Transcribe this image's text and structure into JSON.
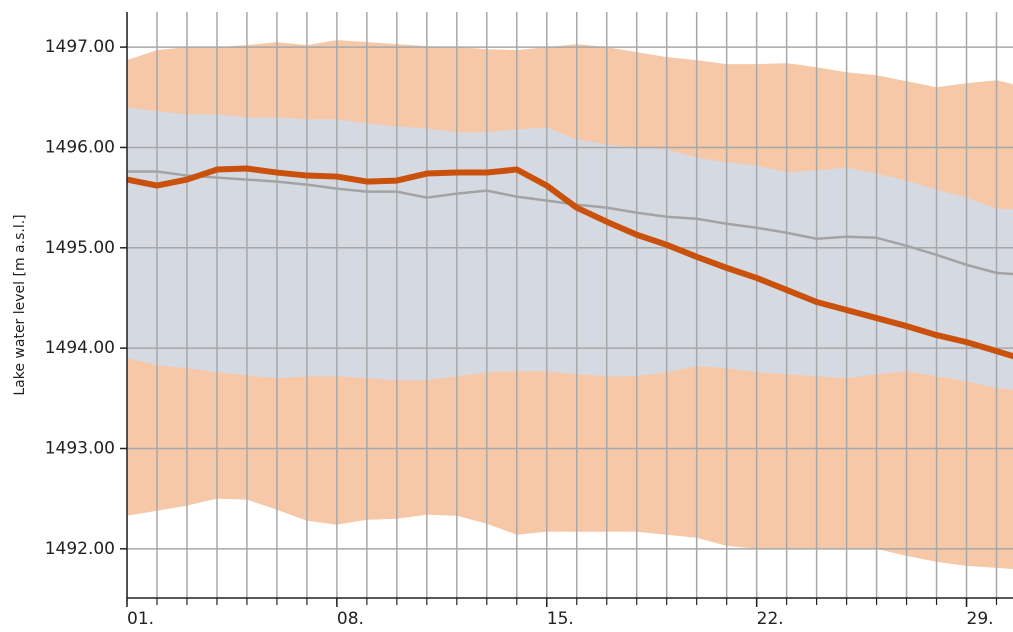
{
  "chart_data": {
    "type": "line",
    "ylabel": "Lake water level [m a.s.l.]",
    "x": [
      1,
      2,
      3,
      4,
      5,
      6,
      7,
      8,
      9,
      10,
      11,
      12,
      13,
      14,
      15,
      16,
      17,
      18,
      19,
      20,
      21,
      22,
      23,
      24,
      25,
      26,
      27,
      28,
      29,
      30,
      31
    ],
    "xlim": [
      1,
      30.55
    ],
    "ylim": [
      1491.51,
      1497.35
    ],
    "xticks": [
      {
        "value": 1,
        "label": "01."
      },
      {
        "value": 8,
        "label": "08."
      },
      {
        "value": 15,
        "label": "15."
      },
      {
        "value": 22,
        "label": "22."
      },
      {
        "value": 29,
        "label": "29."
      }
    ],
    "yticks": [
      {
        "value": 1492,
        "label": "1492.00"
      },
      {
        "value": 1493,
        "label": "1493.00"
      },
      {
        "value": 1494,
        "label": "1494.00"
      },
      {
        "value": 1495,
        "label": "1495.00"
      },
      {
        "value": 1496,
        "label": "1496.00"
      },
      {
        "value": 1497,
        "label": "1497.00"
      }
    ],
    "grid": true,
    "bands": [
      {
        "color": "#f6c8a8",
        "upper": [
          1496.87,
          1496.97,
          1497.0,
          1497.0,
          1497.02,
          1497.05,
          1497.02,
          1497.07,
          1497.05,
          1497.03,
          1497.01,
          1497.0,
          1496.98,
          1496.97,
          1497.0,
          1497.03,
          1497.0,
          1496.95,
          1496.9,
          1496.87,
          1496.83,
          1496.83,
          1496.84,
          1496.8,
          1496.75,
          1496.72,
          1496.66,
          1496.6,
          1496.64,
          1496.67,
          1496.6
        ],
        "lower": [
          1492.33,
          1492.38,
          1492.43,
          1492.5,
          1492.49,
          1492.39,
          1492.28,
          1492.24,
          1492.29,
          1492.3,
          1492.34,
          1492.33,
          1492.25,
          1492.14,
          1492.17,
          1492.17,
          1492.17,
          1492.17,
          1492.14,
          1492.11,
          1492.03,
          1492.0,
          1492.0,
          1492.0,
          1492.0,
          1492.0,
          1491.93,
          1491.87,
          1491.83,
          1491.81,
          1491.79
        ]
      },
      {
        "color": "#d5d9e2",
        "upper": [
          1496.4,
          1496.36,
          1496.33,
          1496.33,
          1496.3,
          1496.3,
          1496.28,
          1496.28,
          1496.24,
          1496.21,
          1496.19,
          1496.15,
          1496.15,
          1496.18,
          1496.2,
          1496.08,
          1496.03,
          1496.0,
          1495.98,
          1495.9,
          1495.85,
          1495.82,
          1495.75,
          1495.77,
          1495.8,
          1495.74,
          1495.67,
          1495.58,
          1495.5,
          1495.39,
          1495.38
        ],
        "lower": [
          1493.9,
          1493.83,
          1493.8,
          1493.76,
          1493.73,
          1493.7,
          1493.72,
          1493.72,
          1493.7,
          1493.68,
          1493.68,
          1493.72,
          1493.76,
          1493.77,
          1493.77,
          1493.74,
          1493.72,
          1493.72,
          1493.76,
          1493.82,
          1493.8,
          1493.76,
          1493.74,
          1493.72,
          1493.7,
          1493.74,
          1493.77,
          1493.72,
          1493.67,
          1493.6,
          1493.58
        ]
      }
    ],
    "series": [
      {
        "color": "#a3a3a3",
        "width": 2.5,
        "values": [
          1495.76,
          1495.76,
          1495.72,
          1495.7,
          1495.68,
          1495.66,
          1495.63,
          1495.59,
          1495.56,
          1495.56,
          1495.5,
          1495.54,
          1495.57,
          1495.51,
          1495.47,
          1495.43,
          1495.4,
          1495.35,
          1495.31,
          1495.29,
          1495.24,
          1495.2,
          1495.15,
          1495.09,
          1495.11,
          1495.1,
          1495.02,
          1494.93,
          1494.83,
          1494.75,
          1494.73
        ]
      },
      {
        "color": "#c9510c",
        "width": 6,
        "values": [
          1495.68,
          1495.62,
          1495.68,
          1495.78,
          1495.79,
          1495.75,
          1495.72,
          1495.71,
          1495.66,
          1495.67,
          1495.74,
          1495.75,
          1495.75,
          1495.78,
          1495.62,
          1495.4,
          1495.26,
          1495.13,
          1495.03,
          1494.91,
          1494.8,
          1494.7,
          1494.58,
          1494.46,
          1494.38,
          1494.3,
          1494.22,
          1494.13,
          1494.06,
          1493.97,
          1493.88
        ]
      }
    ]
  }
}
